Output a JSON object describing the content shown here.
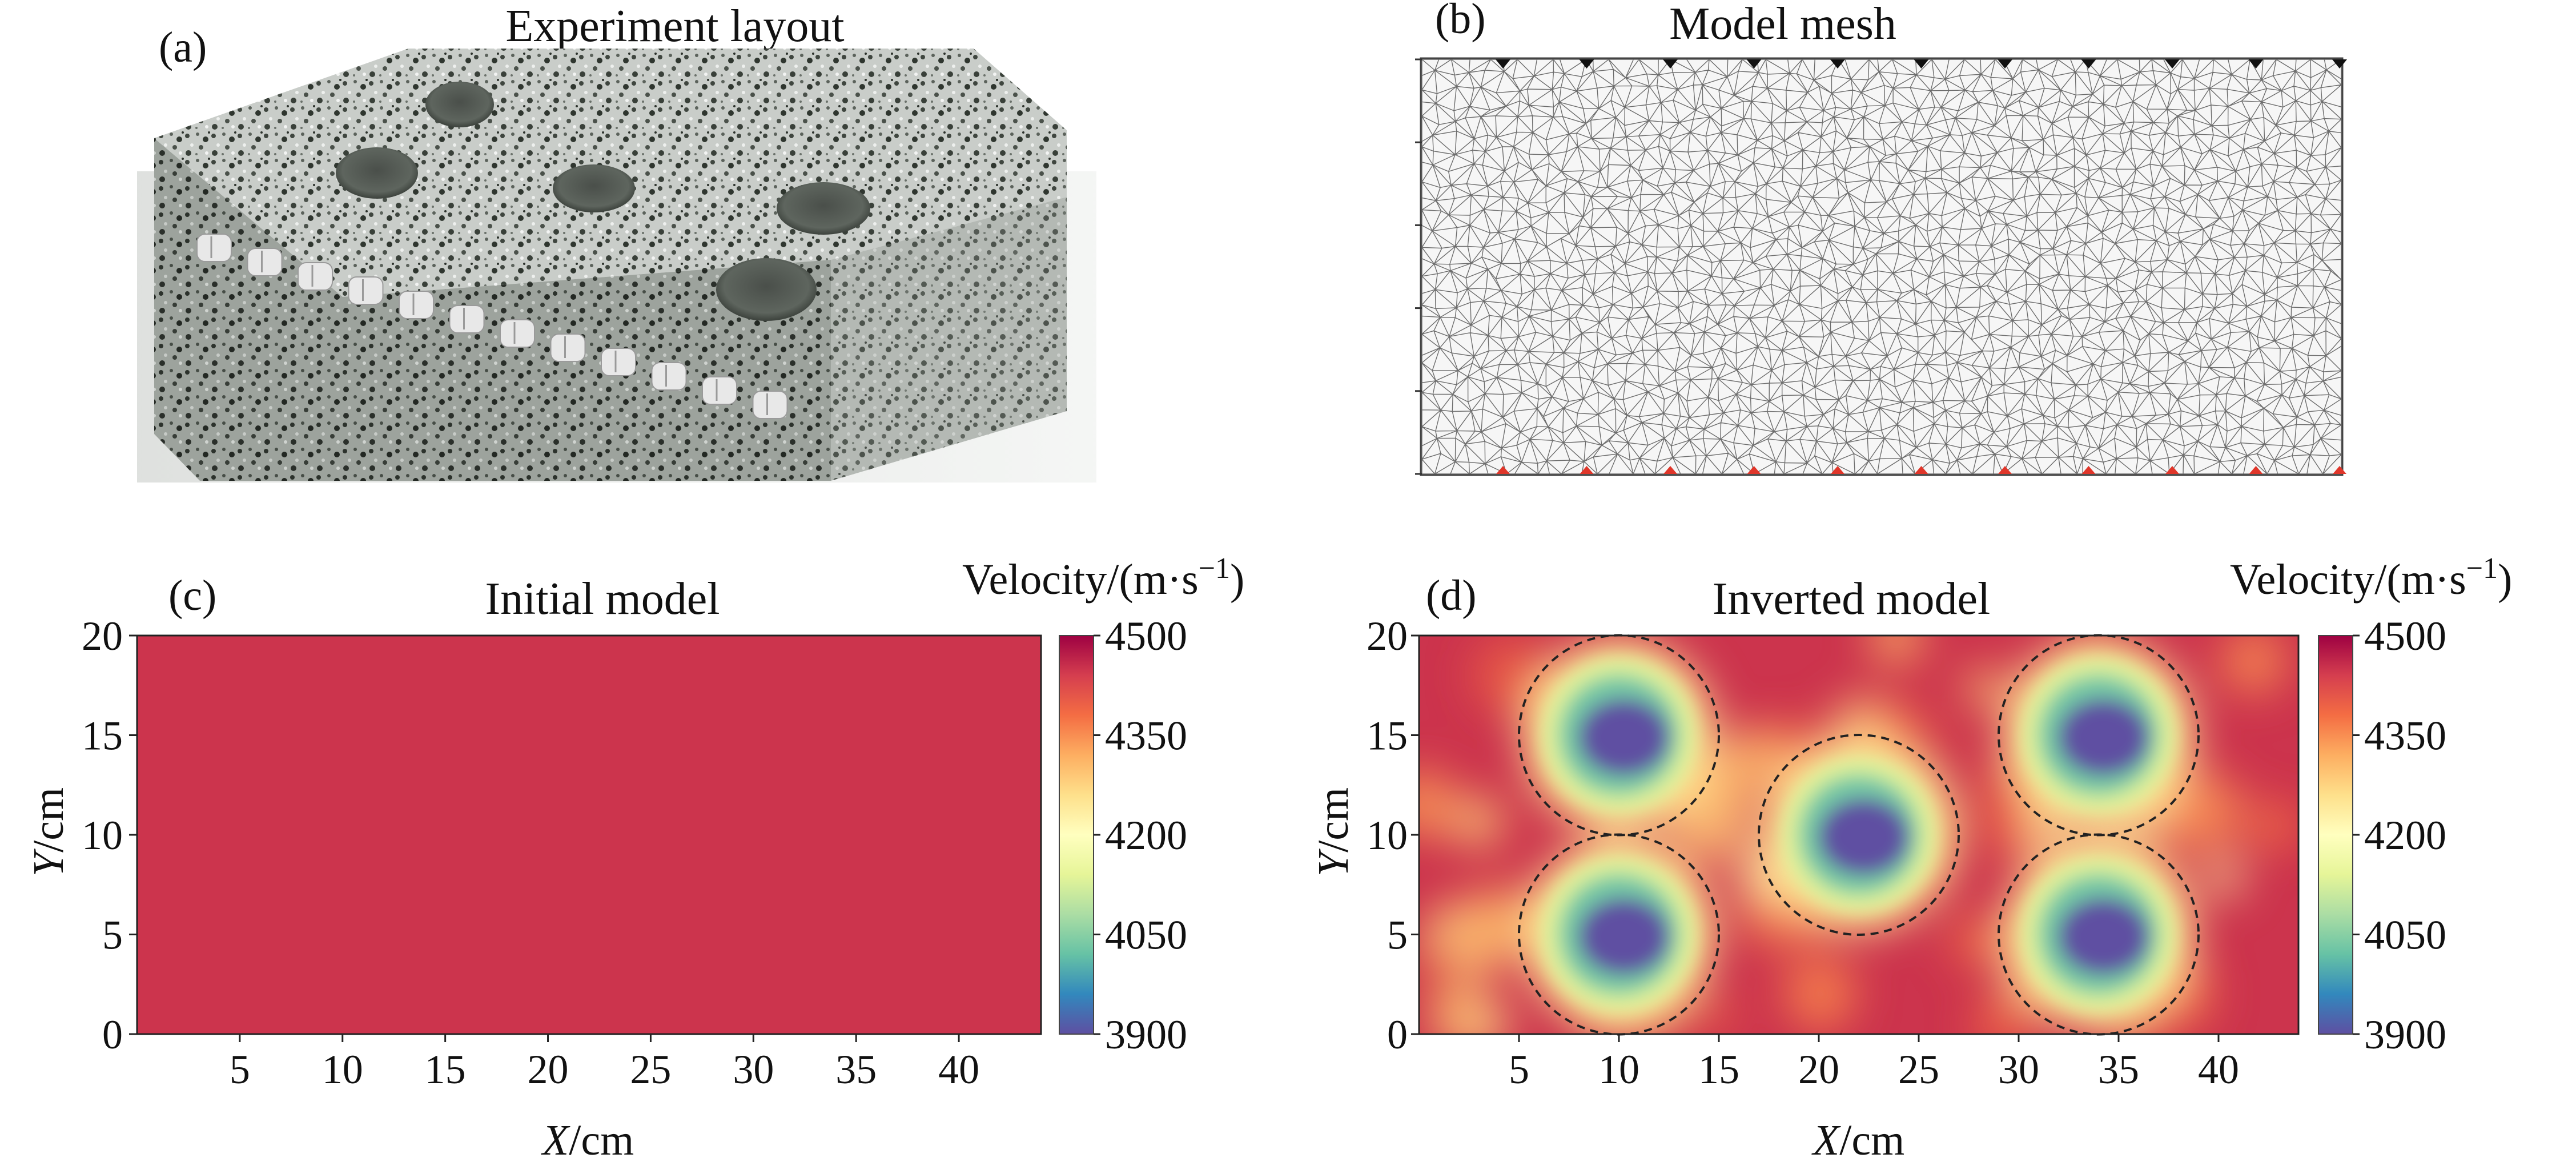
{
  "figure": {
    "panels": [
      {
        "letter": "(a)",
        "title": "Experiment layout"
      },
      {
        "letter": "(b)",
        "title": "Model mesh"
      },
      {
        "letter": "(c)",
        "title": "Initial model"
      },
      {
        "letter": "(d)",
        "title": "Inverted model"
      }
    ],
    "axes": {
      "x_tick_labels": [
        "5",
        "10",
        "15",
        "20",
        "25",
        "30",
        "35",
        "40"
      ],
      "y_tick_labels": [
        "0",
        "5",
        "10",
        "15",
        "20"
      ],
      "x_title_italic": "X",
      "x_title_rest": "/cm",
      "y_title_italic": "Y",
      "y_title_rest": "/cm"
    },
    "colorbar": {
      "title_main": "Velocity/(m·s",
      "title_sup": "−1",
      "title_end": ")",
      "tick_labels": [
        "4500",
        "4350",
        "4200",
        "4050",
        "3900"
      ]
    },
    "colors": {
      "initial_fill": "#9b2d45",
      "high": "#9e0142",
      "low": "#5e4fa2",
      "sensor": "#e8e8e8",
      "mesh_line": "#555555",
      "red_marker": "#e0362a"
    }
  },
  "chart_data": [
    {
      "type": "heatmap",
      "title": "Initial model",
      "xlabel": "X/cm",
      "ylabel": "Y/cm",
      "xlim": [
        0,
        44
      ],
      "ylim": [
        0,
        20
      ],
      "xticks": [
        5,
        10,
        15,
        20,
        25,
        30,
        35,
        40
      ],
      "yticks": [
        0,
        5,
        10,
        15,
        20
      ],
      "colorbar": {
        "label": "Velocity/(m·s−1)",
        "range": [
          3900,
          4500
        ],
        "ticks": [
          3900,
          4050,
          4200,
          4350,
          4500
        ],
        "colormap": "Spectral"
      },
      "uniform_value": 4450
    },
    {
      "type": "heatmap",
      "title": "Inverted model",
      "xlabel": "X/cm",
      "ylabel": "Y/cm",
      "xlim": [
        0,
        44
      ],
      "ylim": [
        0,
        20
      ],
      "xticks": [
        5,
        10,
        15,
        20,
        25,
        30,
        35,
        40
      ],
      "yticks": [
        0,
        5,
        10,
        15,
        20
      ],
      "colorbar": {
        "label": "Velocity/(m·s−1)",
        "range": [
          3900,
          4500
        ],
        "ticks": [
          3900,
          4050,
          4200,
          4350,
          4500
        ],
        "colormap": "Spectral"
      },
      "background_value": 4450,
      "low_velocity_anomalies": [
        {
          "center": [
            10,
            15
          ],
          "radius": 5,
          "min_value": 3900
        },
        {
          "center": [
            10,
            5
          ],
          "radius": 5,
          "min_value": 3900
        },
        {
          "center": [
            22,
            10
          ],
          "radius": 5,
          "min_value": 3900
        },
        {
          "center": [
            34,
            15
          ],
          "radius": 5,
          "min_value": 3900
        },
        {
          "center": [
            34,
            5
          ],
          "radius": 5,
          "min_value": 3900
        }
      ]
    }
  ]
}
